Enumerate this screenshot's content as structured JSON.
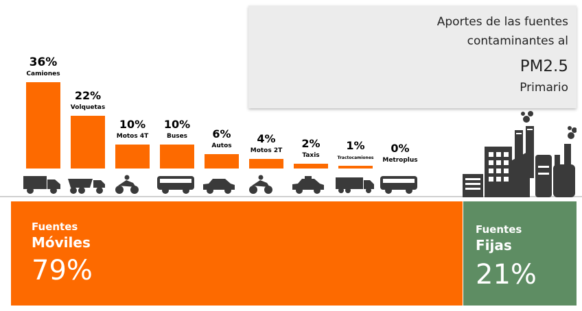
{
  "title": {
    "line1": "Aportes de las fuentes",
    "line2": "contaminantes al",
    "line3": "PM2.5",
    "line4": "Primario"
  },
  "chart_data": {
    "type": "bar",
    "categories": [
      "Camiones",
      "Volquetas",
      "Motos 4T",
      "Buses",
      "Autos",
      "Motos 2T",
      "Taxis",
      "Tractocamiones",
      "Metroplus"
    ],
    "values": [
      36,
      22,
      10,
      10,
      6,
      4,
      2,
      1,
      0
    ],
    "value_labels": [
      "36%",
      "22%",
      "10%",
      "10%",
      "6%",
      "4%",
      "2%",
      "1%",
      "0%"
    ],
    "icons": [
      "truck-icon",
      "dump-truck-icon",
      "motorcycle-icon",
      "bus-icon",
      "car-icon",
      "motorcycle-icon",
      "taxi-icon",
      "tractor-trailer-icon",
      "metroplus-bus-icon"
    ],
    "bar_color": "#fd6a00",
    "ylim": [
      0,
      36
    ],
    "grid": false
  },
  "groups": {
    "moviles": {
      "line1": "Fuentes",
      "line2": "Móviles",
      "value": "79%",
      "color": "#fd6a00"
    },
    "fijas": {
      "line1": "Fuentes",
      "line2": "Fijas",
      "value": "21%",
      "color": "#5e8d63"
    }
  },
  "factory_icon": "factory-icon"
}
